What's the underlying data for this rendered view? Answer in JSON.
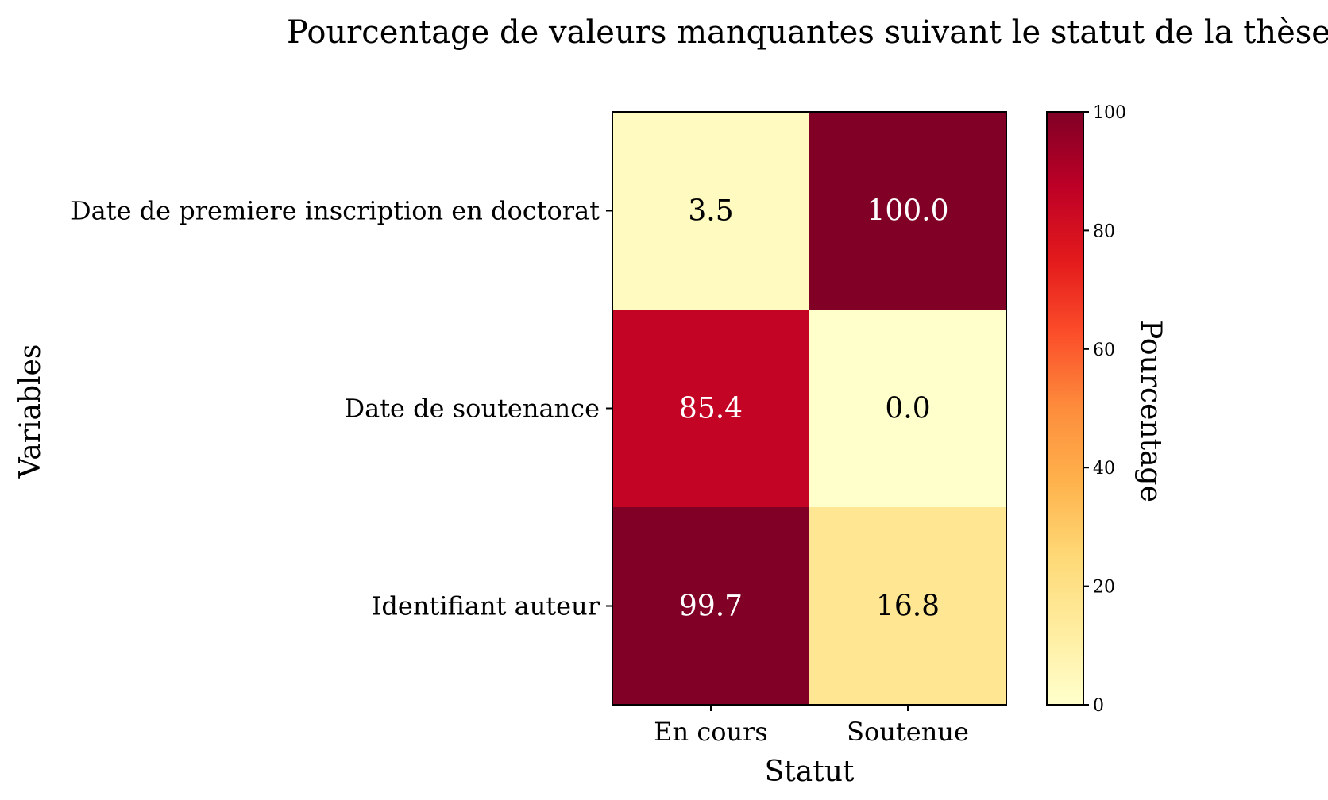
{
  "chart_data": {
    "type": "heatmap",
    "title": "Pourcentage de valeurs manquantes suivant le statut de la thèse",
    "xlabel": "Statut",
    "ylabel": "Variables",
    "x_categories": [
      "En cours",
      "Soutenue"
    ],
    "y_categories": [
      "Date de premiere inscription en doctorat",
      "Date de soutenance",
      "Identifiant auteur"
    ],
    "values": [
      [
        3.5,
        100.0
      ],
      [
        85.4,
        0.0
      ],
      [
        99.7,
        16.8
      ]
    ],
    "value_labels": [
      [
        "3.5",
        "100.0"
      ],
      [
        "85.4",
        "0.0"
      ],
      [
        "99.7",
        "16.8"
      ]
    ],
    "colorbar": {
      "label": "Pourcentage",
      "range": [
        0,
        100
      ],
      "ticks": [
        0,
        20,
        40,
        60,
        80,
        100
      ],
      "tick_labels": [
        "0",
        "20",
        "40",
        "60",
        "80",
        "100"
      ],
      "colormap": "YlOrRd",
      "colormap_stops": [
        "#ffffcc",
        "#ffeda0",
        "#fed976",
        "#feb24c",
        "#fd8d3c",
        "#fc4e2a",
        "#e31a1c",
        "#bd0026",
        "#800026"
      ]
    },
    "text_color_dark": "#000000",
    "text_color_light": "#ffffff"
  }
}
